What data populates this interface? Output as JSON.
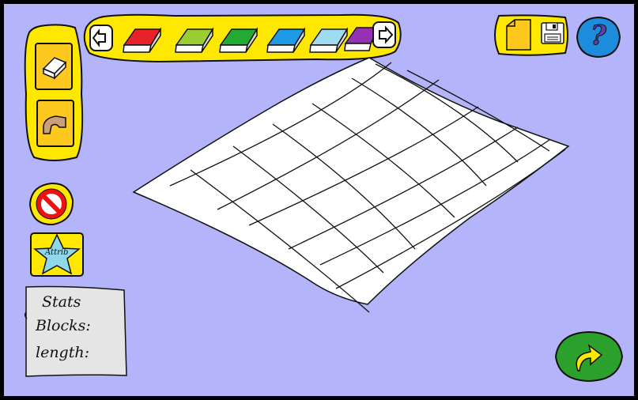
{
  "toolbar": {
    "prev_icon": "arrow-left-icon",
    "next_icon": "arrow-right-icon",
    "blocks": [
      {
        "name": "red-block",
        "color": "#e8222a"
      },
      {
        "name": "lime-block",
        "color": "#9acd32"
      },
      {
        "name": "green-block",
        "color": "#22aa33"
      },
      {
        "name": "blue-block",
        "color": "#1e9be6"
      },
      {
        "name": "light-blue-block",
        "color": "#9fdcf2"
      },
      {
        "name": "purple-block",
        "color": "#9432b4"
      }
    ]
  },
  "tools": {
    "block_icon": "block-icon",
    "arch_icon": "arch-icon",
    "delete_icon": "no-symbol-icon",
    "attrib_label": "Attrib",
    "attrib_icon": "star-icon"
  },
  "file": {
    "new_icon": "new-page-icon",
    "save_icon": "floppy-disk-icon"
  },
  "help": {
    "icon": "question-mark-icon",
    "label": "?"
  },
  "stats": {
    "title": "Stats",
    "blocks_label": "Blocks:",
    "length_label": "length:"
  },
  "go": {
    "icon": "curved-arrow-icon"
  },
  "colors": {
    "background": "#b4b4fa",
    "panel_yellow": "#ffe800",
    "tile_orange": "#ffc81e",
    "help_blue": "#1e8cdc",
    "go_green": "#2ca02c"
  }
}
